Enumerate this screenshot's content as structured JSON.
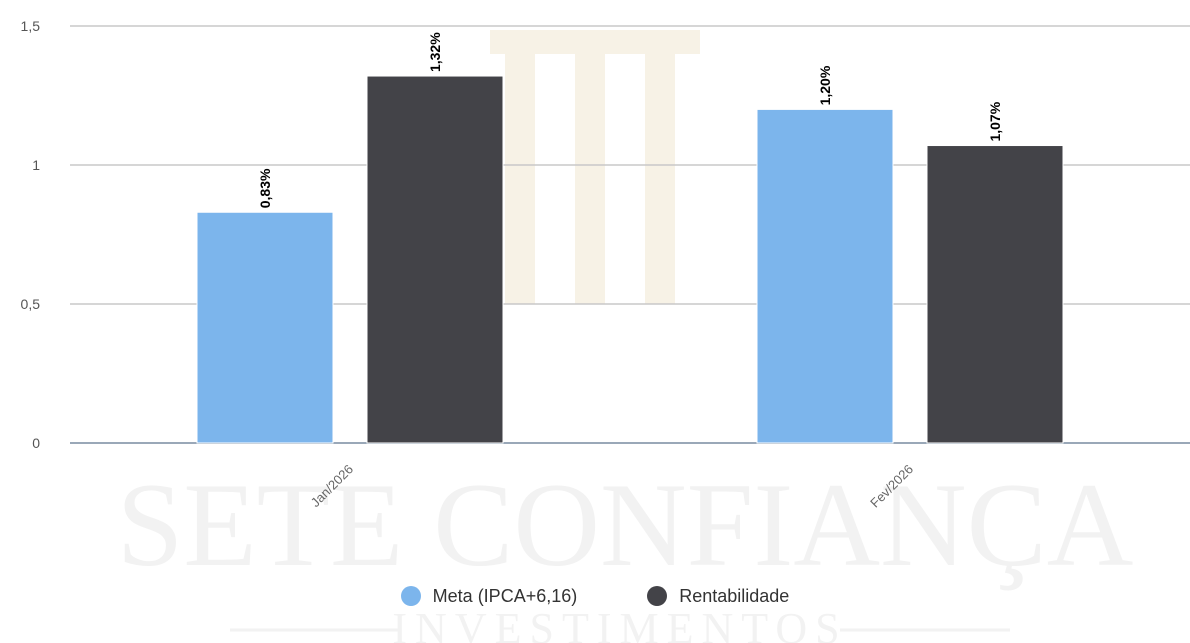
{
  "watermark": {
    "main_text": "SETE CONFIANÇA",
    "sub_text": "INVESTIMENTOS"
  },
  "chart_data": {
    "type": "bar",
    "categories": [
      "Jan/2026",
      "Fev/2026"
    ],
    "series": [
      {
        "name": "Meta (IPCA+6,16)",
        "values": [
          0.83,
          1.2
        ],
        "labels": [
          "0,83%",
          "1,20%"
        ],
        "color": "#7cb5ec"
      },
      {
        "name": "Rentabilidade",
        "values": [
          1.32,
          1.07
        ],
        "labels": [
          "1,32%",
          "1,07%"
        ],
        "color": "#434348"
      }
    ],
    "ylim": [
      0,
      1.5
    ],
    "yticks": [
      0,
      0.5,
      1,
      1.5
    ],
    "ytick_labels": [
      "0",
      "0,5",
      "1",
      "1,5"
    ],
    "grid": true,
    "legend_position": "bottom-center"
  }
}
